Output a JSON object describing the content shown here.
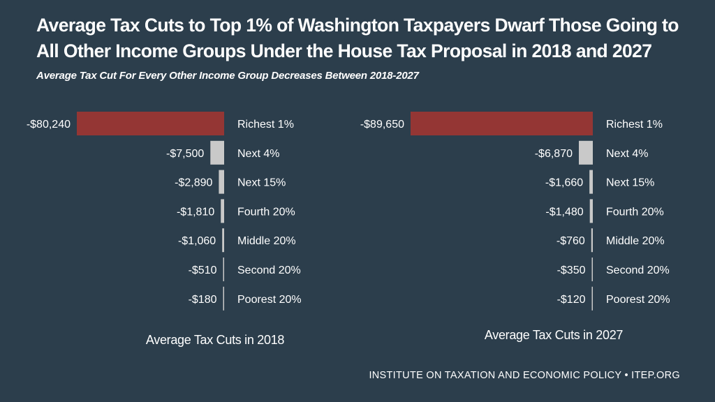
{
  "title": "Average Tax Cuts to Top 1% of Washington Taxpayers Dwarf Those Going to All Other Income Groups Under the House Tax Proposal in 2018 and 2027",
  "subtitle": "Average Tax Cut For Every Other Income Group Decreases Between 2018-2027",
  "footer": "INSTITUTE ON TAXATION AND ECONOMIC POLICY • ITEP.ORG",
  "colors": {
    "background": "#2c3e4c",
    "top_bar": "#943634",
    "other_bars": "#c9c9c9"
  },
  "chart_data": [
    {
      "type": "bar",
      "orientation": "horizontal",
      "title": "Average Tax Cuts in 2018",
      "categories": [
        "Richest 1%",
        "Next 4%",
        "Next 15%",
        "Fourth 20%",
        "Middle 20%",
        "Second 20%",
        "Poorest 20%"
      ],
      "values": [
        -80240,
        -7500,
        -2890,
        -1810,
        -1060,
        -510,
        -180
      ],
      "value_labels": [
        "-$80,240",
        "-$7,500",
        "-$2,890",
        "-$1,810",
        "-$1,060",
        "-$510",
        "-$180"
      ]
    },
    {
      "type": "bar",
      "orientation": "horizontal",
      "title": "Average Tax Cuts in 2027",
      "categories": [
        "Richest 1%",
        "Next 4%",
        "Next 15%",
        "Fourth 20%",
        "Middle 20%",
        "Second 20%",
        "Poorest 20%"
      ],
      "values": [
        -89650,
        -6870,
        -1660,
        -1480,
        -760,
        -350,
        -120
      ],
      "value_labels": [
        "-$89,650",
        "-$6,870",
        "-$1,660",
        "-$1,480",
        "-$760",
        "-$350",
        "-$120"
      ]
    }
  ]
}
